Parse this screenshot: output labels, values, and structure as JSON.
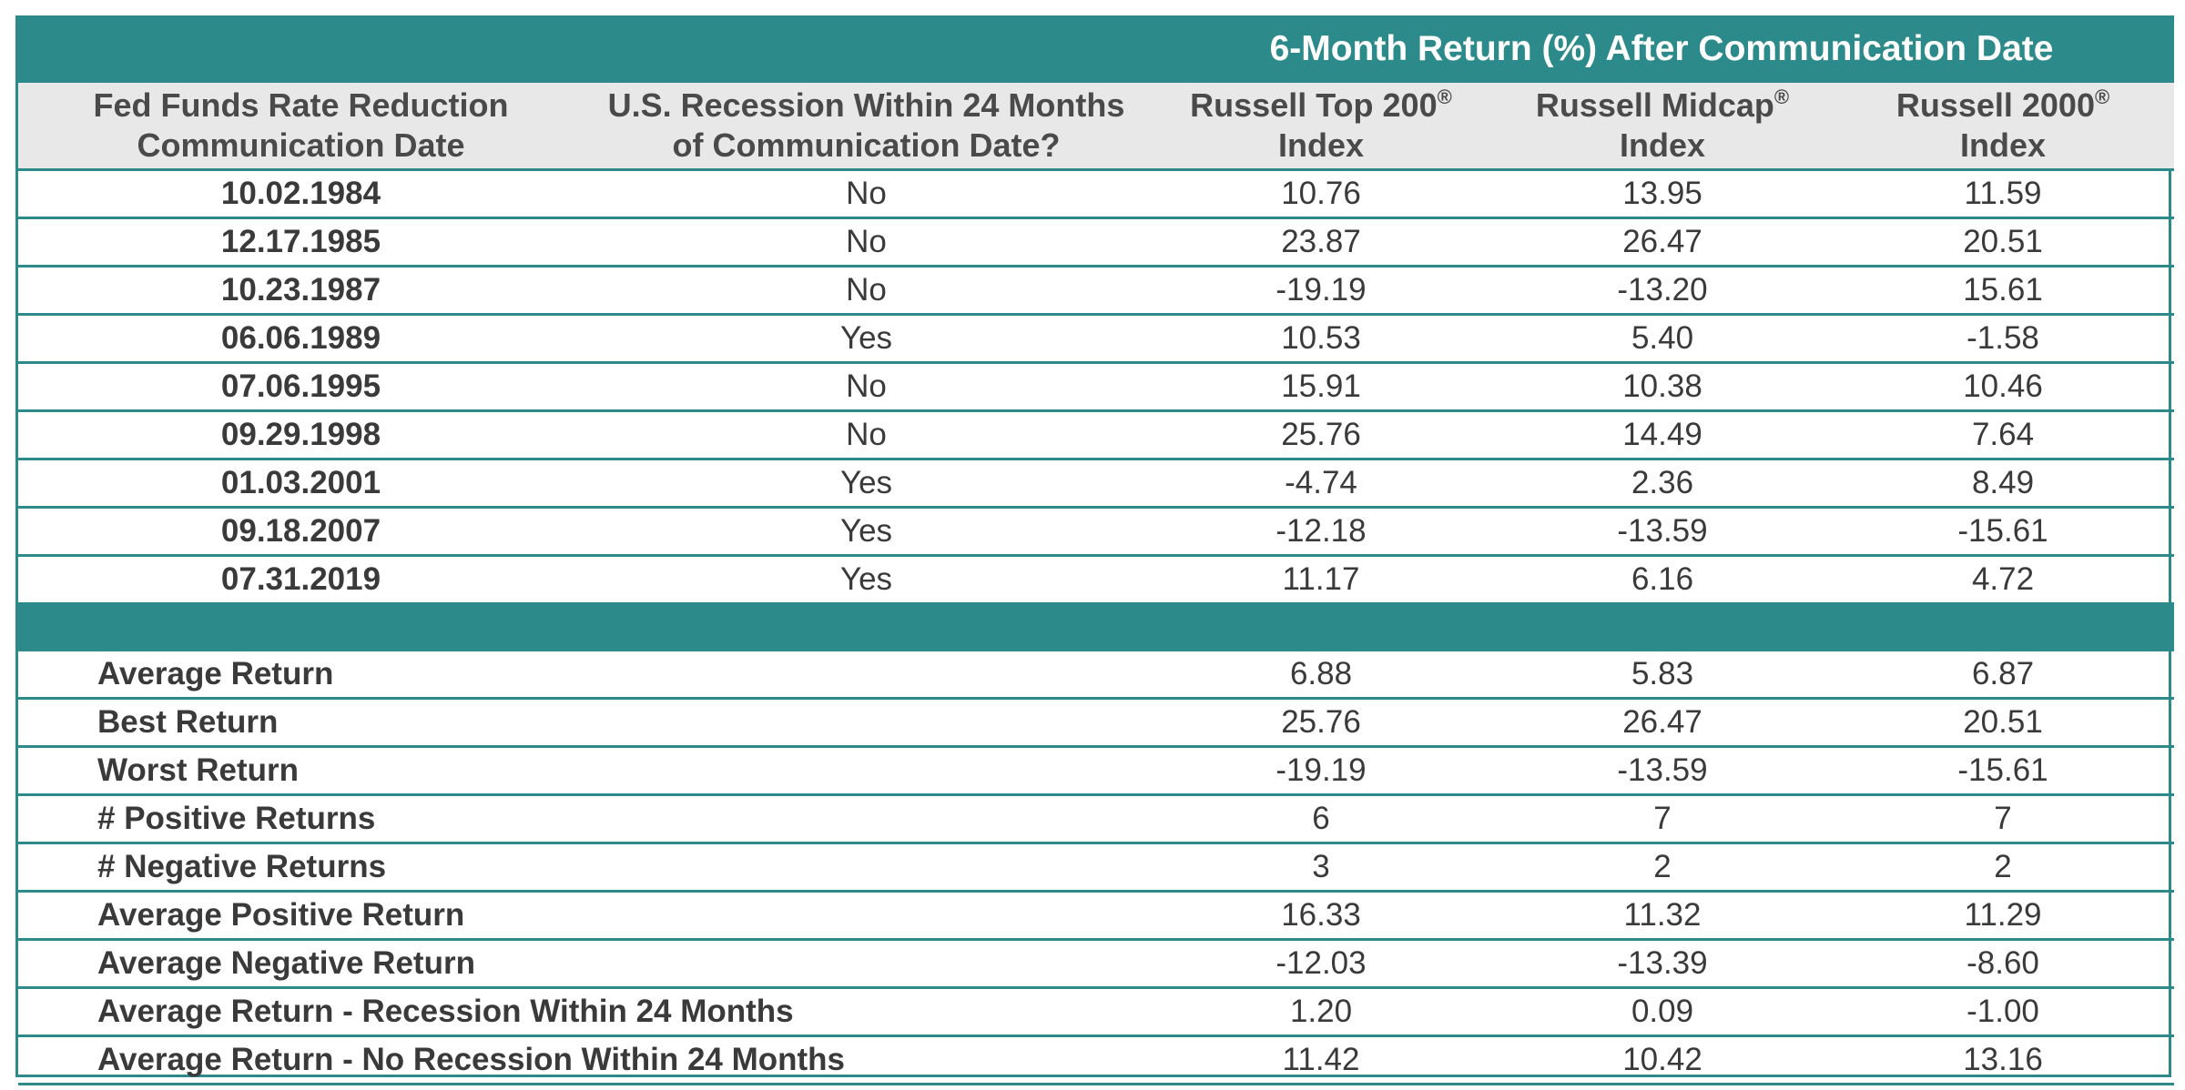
{
  "chart_data": {
    "type": "table",
    "group_header": "6-Month Return (%) After Communication Date",
    "columns": [
      {
        "line1": "Fed Funds Rate Reduction",
        "line2": "Communication Date"
      },
      {
        "line1": "U.S. Recession Within 24 Months",
        "line2": "of Communication Date?"
      },
      {
        "line1": "Russell Top 200",
        "mark": "®",
        "line2": "Index"
      },
      {
        "line1": "Russell Midcap",
        "mark": "®",
        "line2": "Index"
      },
      {
        "line1": "Russell 2000",
        "mark": "®",
        "line2": "Index"
      }
    ],
    "rows": [
      [
        "10.02.1984",
        "No",
        "10.76",
        "13.95",
        "11.59"
      ],
      [
        "12.17.1985",
        "No",
        "23.87",
        "26.47",
        "20.51"
      ],
      [
        "10.23.1987",
        "No",
        "-19.19",
        "-13.20",
        "15.61"
      ],
      [
        "06.06.1989",
        "Yes",
        "10.53",
        "5.40",
        "-1.58"
      ],
      [
        "07.06.1995",
        "No",
        "15.91",
        "10.38",
        "10.46"
      ],
      [
        "09.29.1998",
        "No",
        "25.76",
        "14.49",
        "7.64"
      ],
      [
        "01.03.2001",
        "Yes",
        "-4.74",
        "2.36",
        "8.49"
      ],
      [
        "09.18.2007",
        "Yes",
        "-12.18",
        "-13.59",
        "-15.61"
      ],
      [
        "07.31.2019",
        "Yes",
        "11.17",
        "6.16",
        "4.72"
      ]
    ],
    "summary": [
      {
        "label": "Average Return",
        "values": [
          "6.88",
          "5.83",
          "6.87"
        ]
      },
      {
        "label": "Best Return",
        "values": [
          "25.76",
          "26.47",
          "20.51"
        ]
      },
      {
        "label": "Worst Return",
        "values": [
          "-19.19",
          "-13.59",
          "-15.61"
        ]
      },
      {
        "label": "# Positive Returns",
        "values": [
          "6",
          "7",
          "7"
        ]
      },
      {
        "label": "# Negative Returns",
        "values": [
          "3",
          "2",
          "2"
        ]
      },
      {
        "label": "Average Positive Return",
        "values": [
          "16.33",
          "11.32",
          "11.29"
        ]
      },
      {
        "label": "Average Negative Return",
        "values": [
          "-12.03",
          "-13.39",
          "-8.60"
        ]
      },
      {
        "label": "Average Return - Recession Within 24 Months",
        "values": [
          "1.20",
          "0.09",
          "-1.00"
        ]
      },
      {
        "label": "Average Return - No Recession Within 24 Months",
        "values": [
          "11.42",
          "10.42",
          "13.16"
        ]
      }
    ]
  },
  "colors": {
    "accent": "#2c8b8a",
    "header_bg": "#e8e8e8",
    "text": "#3a3a3a"
  }
}
